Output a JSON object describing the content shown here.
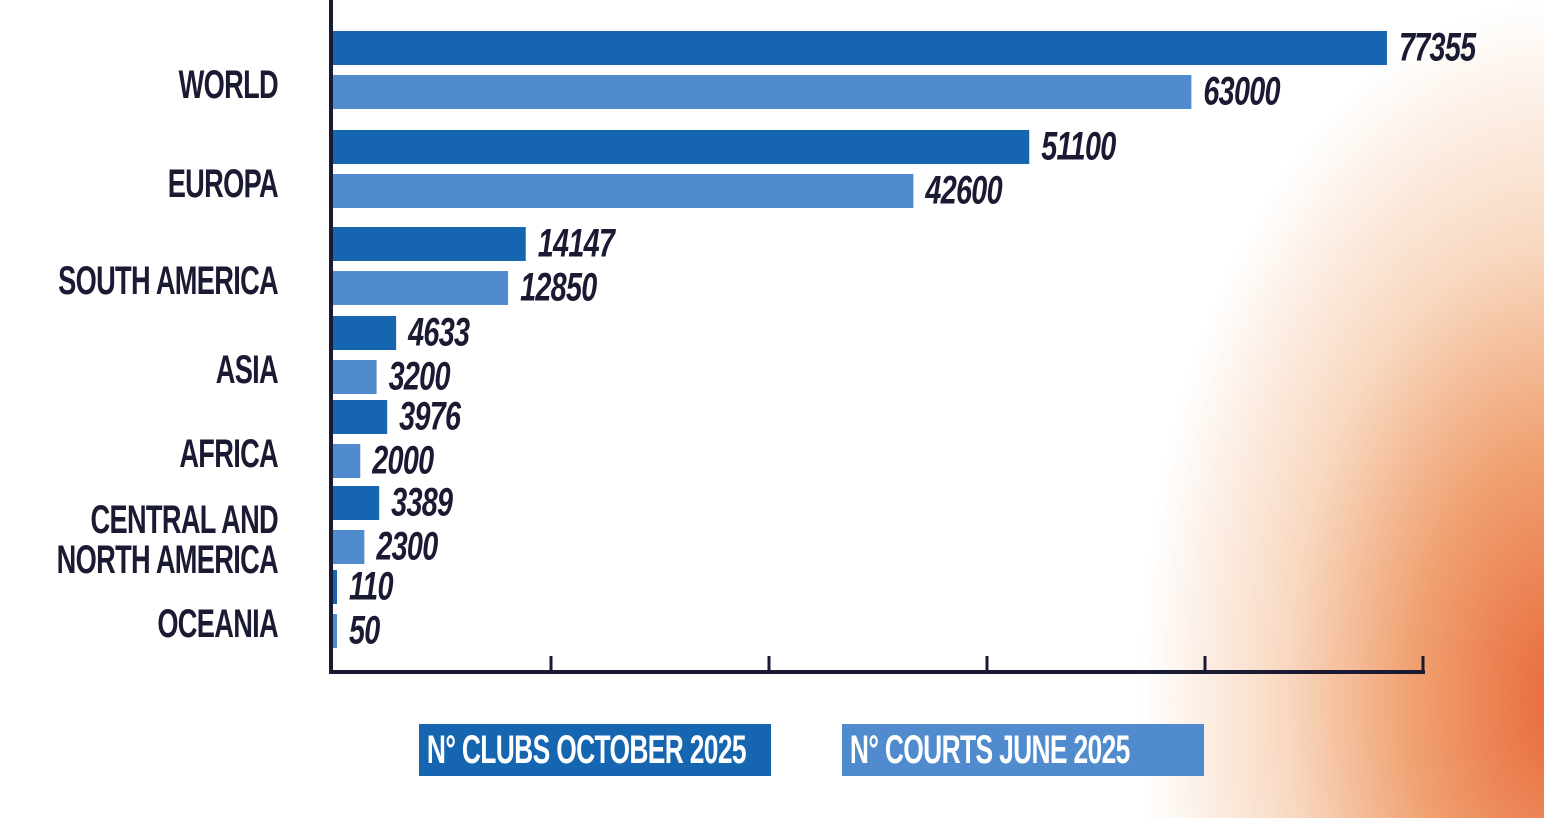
{
  "chart_data": {
    "type": "bar",
    "orientation": "horizontal",
    "categories": [
      "WORLD",
      "EUROPA",
      "SOUTH AMERICA",
      "ASIA",
      "AFRICA",
      "CENTRAL AND NORTH AMERICA",
      "OCEANIA"
    ],
    "series": [
      {
        "name": "N° CLUBS OCTOBER 2025",
        "color": "#1565b0",
        "values": [
          77355,
          51100,
          14147,
          4633,
          3976,
          3389,
          110
        ]
      },
      {
        "name": "N° COURTS JUNE 2025",
        "color": "#4f8bcd",
        "values": [
          63000,
          42600,
          12850,
          3200,
          2000,
          2300,
          50
        ]
      }
    ],
    "xlim": [
      0,
      80000
    ],
    "xticks": [
      0,
      16000,
      32000,
      48000,
      64000,
      80000
    ],
    "legend": "bottom"
  }
}
